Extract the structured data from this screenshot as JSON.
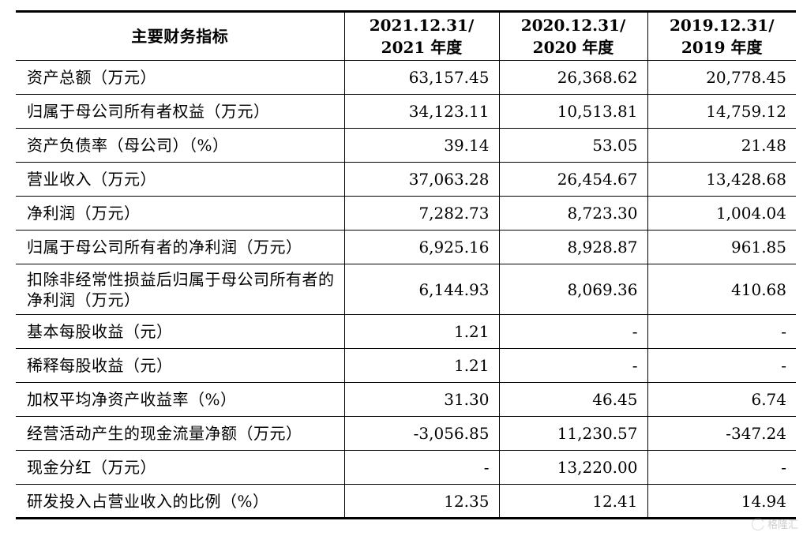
{
  "table": {
    "header": {
      "label": "主要财务指标",
      "col1": [
        "2021.12.31/",
        "2021 年度"
      ],
      "col2": [
        "2020.12.31/",
        "2020 年度"
      ],
      "col3": [
        "2019.12.31/",
        "2019 年度"
      ]
    },
    "rows": [
      {
        "label": "资产总额（万元）",
        "v2021": "63,157.45",
        "v2020": "26,368.62",
        "v2019": "20,778.45"
      },
      {
        "label": "归属于母公司所有者权益（万元）",
        "v2021": "34,123.11",
        "v2020": "10,513.81",
        "v2019": "14,759.12"
      },
      {
        "label": "资产负债率（母公司）（%）",
        "v2021": "39.14",
        "v2020": "53.05",
        "v2019": "21.48"
      },
      {
        "label": "营业收入（万元）",
        "v2021": "37,063.28",
        "v2020": "26,454.67",
        "v2019": "13,428.68"
      },
      {
        "label": "净利润（万元）",
        "v2021": "7,282.73",
        "v2020": "8,723.30",
        "v2019": "1,004.04"
      },
      {
        "label": "归属于母公司所有者的净利润（万元）",
        "v2021": "6,925.16",
        "v2020": "8,928.87",
        "v2019": "961.85"
      },
      {
        "label": "扣除非经常性损益后归属于母公司所有者的净利润（万元）",
        "v2021": "6,144.93",
        "v2020": "8,069.36",
        "v2019": "410.68"
      },
      {
        "label": "基本每股收益（元）",
        "v2021": "1.21",
        "v2020": "-",
        "v2019": "-"
      },
      {
        "label": "稀释每股收益（元）",
        "v2021": "1.21",
        "v2020": "-",
        "v2019": "-"
      },
      {
        "label": "加权平均净资产收益率（%）",
        "v2021": "31.30",
        "v2020": "46.45",
        "v2019": "6.74"
      },
      {
        "label": "经营活动产生的现金流量净额（万元）",
        "v2021": "-3,056.85",
        "v2020": "11,230.57",
        "v2019": "-347.24"
      },
      {
        "label": "现金分红（万元）",
        "v2021": "-",
        "v2020": "13,220.00",
        "v2019": "-"
      },
      {
        "label": "研发投入占营业收入的比例（%）",
        "v2021": "12.35",
        "v2020": "12.41",
        "v2019": "14.94"
      }
    ]
  },
  "watermark": {
    "text": "格隆汇",
    "icon": "logo-icon"
  }
}
